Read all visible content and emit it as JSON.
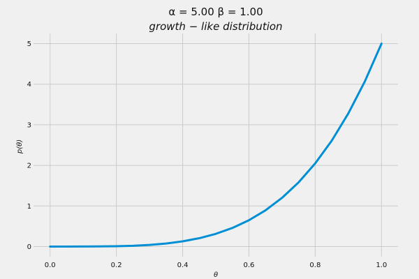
{
  "chart_data": {
    "type": "line",
    "title_line1": "α = 5.00    β = 1.00",
    "title_line2": "growth − like   distribution",
    "xlabel": "θ",
    "ylabel": "p(θ)",
    "xlim": [
      -0.05,
      1.05
    ],
    "ylim": [
      -0.25,
      5.25
    ],
    "grid": true,
    "x_ticks": [
      0.0,
      0.2,
      0.4,
      0.6,
      0.8,
      1.0
    ],
    "x_tick_labels": [
      "0.0",
      "0.2",
      "0.4",
      "0.6",
      "0.8",
      "1.0"
    ],
    "y_ticks": [
      0,
      1,
      2,
      3,
      4,
      5
    ],
    "y_tick_labels": [
      "0",
      "1",
      "2",
      "3",
      "4",
      "5"
    ],
    "series": [
      {
        "color": "#008fd5",
        "x": [
          0.0,
          0.05,
          0.1,
          0.15,
          0.2,
          0.25,
          0.3,
          0.35,
          0.4,
          0.45,
          0.5,
          0.55,
          0.6,
          0.65,
          0.7,
          0.75,
          0.8,
          0.85,
          0.9,
          0.95,
          1.0
        ],
        "y": [
          0.0,
          0.0,
          0.0005,
          0.0025,
          0.008,
          0.0195,
          0.0405,
          0.075,
          0.128,
          0.205,
          0.3125,
          0.4575,
          0.648,
          0.8925,
          1.2005,
          1.582,
          2.048,
          2.61,
          3.2805,
          4.0725,
          5.0
        ]
      }
    ]
  }
}
